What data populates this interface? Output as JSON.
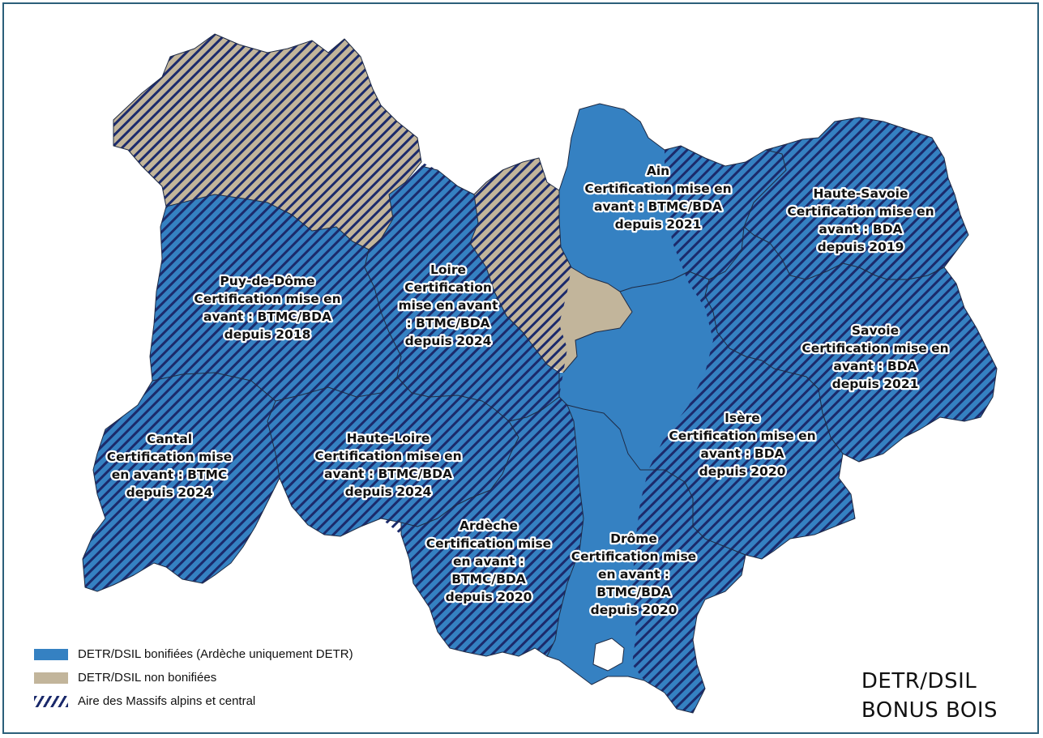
{
  "colors": {
    "bonified": "#3581c2",
    "non_bonified": "#c2b59b",
    "hatch": "#1b2a6b",
    "border": "#2b5f7a"
  },
  "departments": [
    {
      "key": "puy",
      "lines": [
        "Puy-de-Dôme",
        "Certification mise en",
        "avant : BTMC/BDA",
        "depuis 2018"
      ]
    },
    {
      "key": "loire",
      "lines": [
        "Loire",
        "Certification",
        "mise en avant",
        ": BTMC/BDA",
        "depuis 2024"
      ]
    },
    {
      "key": "ain",
      "lines": [
        "Ain",
        "Certification mise en",
        "avant : BTMC/BDA",
        "depuis 2021"
      ]
    },
    {
      "key": "hsavoie",
      "lines": [
        "Haute-Savoie",
        "Certification mise en",
        "avant : BDA",
        "depuis 2019"
      ]
    },
    {
      "key": "savoie",
      "lines": [
        "Savoie",
        "Certification mise en",
        "avant : BDA",
        "depuis 2021"
      ]
    },
    {
      "key": "isere",
      "lines": [
        "Isère",
        "Certification mise en",
        "avant : BDA",
        "depuis 2020"
      ]
    },
    {
      "key": "cantal",
      "lines": [
        "Cantal",
        "Certification mise",
        "en avant : BTMC",
        "depuis 2024"
      ]
    },
    {
      "key": "hloire",
      "lines": [
        "Haute-Loire",
        "Certification mise en",
        "avant : BTMC/BDA",
        "depuis 2024"
      ]
    },
    {
      "key": "ardeche",
      "lines": [
        "Ardèche",
        "Certification mise",
        "en avant :",
        "BTMC/BDA",
        "depuis 2020"
      ]
    },
    {
      "key": "drome",
      "lines": [
        "Drôme",
        "Certification mise",
        "en avant :",
        "BTMC/BDA",
        "depuis 2020"
      ]
    }
  ],
  "legend": {
    "bonified": "DETR/DSIL bonifiées (Ardèche uniquement DETR)",
    "non_bonified": "DETR/DSIL non bonifiées",
    "massifs": "Aire des Massifs alpins et central"
  },
  "title": {
    "line1": "DETR/DSIL",
    "line2": "BONUS BOIS"
  }
}
